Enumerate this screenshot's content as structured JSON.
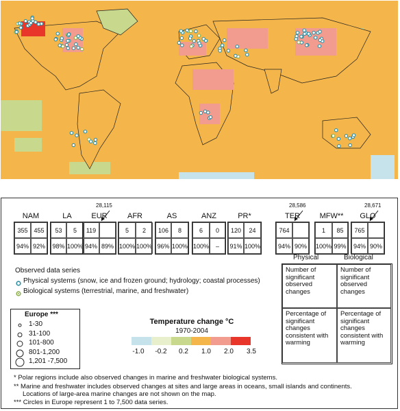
{
  "colors": {
    "ocean_warm": "#f4b54a",
    "land_warm": "#f4b54a",
    "bin_minus1": "#c6e2ea",
    "bin_minus02": "#e8efcc",
    "bin_02": "#c8d98d",
    "bin_1": "#f4b54a",
    "bin_2": "#f29b8f",
    "bin_35": "#e8362b",
    "physical_dot": "#2e8fa3",
    "biological_dot": "#8db04a",
    "land_white": "#ffffff"
  },
  "regions": [
    {
      "label": "NAM",
      "cells": [
        "355",
        "455",
        "94%",
        "92%"
      ],
      "callout": ""
    },
    {
      "label": "LA",
      "cells": [
        "53",
        "5",
        "98%",
        "100%"
      ],
      "callout": ""
    },
    {
      "label": "EUR",
      "cells": [
        "119",
        "",
        "94%",
        "89%"
      ],
      "callout": "28,115"
    },
    {
      "label": "AFR",
      "cells": [
        "5",
        "2",
        "100%",
        "100%"
      ],
      "callout": ""
    },
    {
      "label": "AS",
      "cells": [
        "106",
        "8",
        "96%",
        "100%"
      ],
      "callout": ""
    },
    {
      "label": "ANZ",
      "cells": [
        "6",
        "0",
        "100%",
        "–"
      ],
      "callout": ""
    },
    {
      "label": "PR*",
      "cells": [
        "120",
        "24",
        "91%",
        "100%"
      ],
      "callout": ""
    },
    {
      "label": "TER",
      "cells": [
        "764",
        "",
        "94%",
        "90%"
      ],
      "callout": "28,586"
    },
    {
      "label": "MFW**",
      "cells": [
        "1",
        "85",
        "100%",
        "99%"
      ],
      "callout": ""
    },
    {
      "label": "GLO",
      "cells": [
        "765",
        "",
        "94%",
        "90%"
      ],
      "callout": "28,671"
    }
  ],
  "legend": {
    "title": "Observed data series",
    "physical": "Physical systems (snow, ice and frozen ground; hydrology; coastal processes)",
    "biological": "Biological systems (terrestrial, marine, and freshwater)"
  },
  "explanation": {
    "col1": "Physical",
    "col2": "Biological",
    "top_left": "Number of significant observed changes",
    "top_right": "Number of significant observed changes",
    "bottom_left": "Percentage of significant changes consistent with warming",
    "bottom_right": "Percentage of significant changes consistent with warming"
  },
  "europe": {
    "title": "Europe ***",
    "rows": [
      "1-30",
      "31-100",
      "101-800",
      "801-1,200",
      "1,201 -7,500"
    ]
  },
  "temperature": {
    "title": "Temperature change °C",
    "subtitle": "1970-2004",
    "ticks": [
      "-1.0",
      "-0.2",
      "0.2",
      "1.0",
      "2.0",
      "3.5"
    ]
  },
  "footnotes": [
    "* Polar regions include also observed changes in marine and freshwater biological systems.",
    "** Marine and freshwater includes observed changes at sites and large areas in oceans, small islands and continents.",
    "Locations of large-area marine changes are not shown on the map.",
    "*** Circles in Europe represent 1 to 7,500 data series."
  ]
}
